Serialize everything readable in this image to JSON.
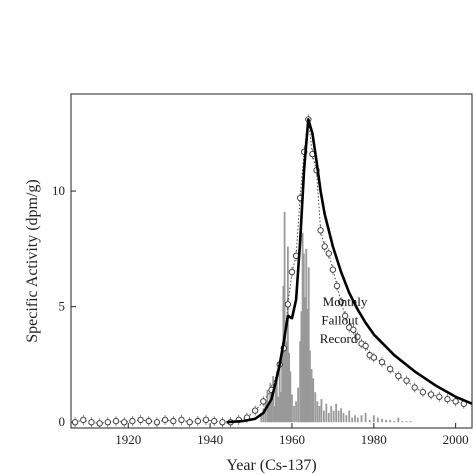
{
  "chart_data": {
    "type": "line",
    "xlabel": "Year (Cs-137)",
    "ylabel": "Specific Activity (dpm/g)",
    "xlim": [
      1906,
      2004
    ],
    "ylim": [
      -0.25,
      14.2
    ],
    "xticks": [
      1920,
      1940,
      1960,
      1980,
      2000
    ],
    "xtick_labels": [
      "1920",
      "1940",
      "1960",
      "1980",
      "2000"
    ],
    "yticks": [
      0,
      5,
      10
    ],
    "ytick_labels": [
      "0",
      "5",
      "10"
    ],
    "annotation_lines": [
      "Monthly",
      "Fallout",
      "Record"
    ],
    "series": [
      {
        "style": "solid-thick",
        "color": "#000000",
        "x": [
          1944,
          1948,
          1951,
          1953,
          1955,
          1956,
          1957,
          1958,
          1959,
          1960,
          1961,
          1962,
          1963,
          1964,
          1965,
          1966,
          1967,
          1968,
          1970,
          1972,
          1974,
          1976,
          1978,
          1980,
          1985,
          1990,
          1995,
          2000,
          2004
        ],
        "y": [
          0,
          0.05,
          0.15,
          0.4,
          1.0,
          1.7,
          2.5,
          3.5,
          4.6,
          4.5,
          5.3,
          7.8,
          11.0,
          13.1,
          12.5,
          11.3,
          10.0,
          9.0,
          7.6,
          6.5,
          5.6,
          4.9,
          4.3,
          3.8,
          2.9,
          2.2,
          1.6,
          1.1,
          0.8
        ]
      },
      {
        "style": "dotted-circles",
        "color": "#444444",
        "x": [
          1907,
          1909,
          1911,
          1913,
          1915,
          1917,
          1919,
          1921,
          1923,
          1925,
          1927,
          1929,
          1931,
          1933,
          1935,
          1937,
          1939,
          1941,
          1943,
          1945,
          1947,
          1949,
          1951,
          1953,
          1955,
          1957,
          1958,
          1959,
          1960,
          1961,
          1962,
          1963,
          1964,
          1965,
          1966,
          1967,
          1968,
          1969,
          1970,
          1971,
          1972,
          1973,
          1974,
          1975,
          1976,
          1977,
          1978,
          1979,
          1980,
          1982,
          1984,
          1986,
          1988,
          1990,
          1992,
          1994,
          1996,
          1998,
          2000,
          2002
        ],
        "y": [
          0.0,
          0.1,
          0.0,
          -0.05,
          0.0,
          0.05,
          0.0,
          0.05,
          0.1,
          0.05,
          0.0,
          0.1,
          0.05,
          0.1,
          0.0,
          0.05,
          0.1,
          0.05,
          0.0,
          0.0,
          0.1,
          0.2,
          0.5,
          0.9,
          1.4,
          2.5,
          3.2,
          5.1,
          6.5,
          7.2,
          9.7,
          11.7,
          13.1,
          11.6,
          10.9,
          8.3,
          7.6,
          7.3,
          6.6,
          5.9,
          5.2,
          4.6,
          4.1,
          4.0,
          3.7,
          3.4,
          3.3,
          2.9,
          2.8,
          2.6,
          2.3,
          2.0,
          1.8,
          1.5,
          1.3,
          1.2,
          1.1,
          1.0,
          0.9,
          0.8
        ]
      },
      {
        "style": "gray-bars",
        "color": "#999999",
        "x": [
          1952.5,
          1953.0,
          1953.5,
          1954.0,
          1954.3,
          1954.7,
          1955.0,
          1955.4,
          1955.8,
          1956.0,
          1956.3,
          1956.6,
          1957.0,
          1957.3,
          1957.6,
          1957.9,
          1958.2,
          1958.4,
          1958.7,
          1959.0,
          1959.3,
          1959.6,
          1960.0,
          1960.5,
          1961.0,
          1961.5,
          1962.0,
          1962.3,
          1962.6,
          1962.9,
          1963.2,
          1963.5,
          1963.8,
          1964.1,
          1964.4,
          1964.8,
          1965.2,
          1965.7,
          1966.2,
          1966.7,
          1967.2,
          1967.8,
          1968.4,
          1969.0,
          1969.6,
          1970.2,
          1970.8,
          1971.4,
          1972.0,
          1972.6,
          1973.3,
          1974.0,
          1974.7,
          1975.4,
          1976.1,
          1977.0,
          1978.0,
          1979.0,
          1980.0,
          1981.0,
          1982.0,
          1983.0,
          1984.0,
          1985.0,
          1986.0,
          1987.0,
          1988.0,
          1989.0
        ],
        "y": [
          0.4,
          0.6,
          0.9,
          1.4,
          0.8,
          1.7,
          1.2,
          2.0,
          0.7,
          1.6,
          2.2,
          1.1,
          2.5,
          1.3,
          3.0,
          5.9,
          9.1,
          4.2,
          3.5,
          7.6,
          3.0,
          2.2,
          1.2,
          0.7,
          0.9,
          1.5,
          3.5,
          4.8,
          8.2,
          7.3,
          5.4,
          7.5,
          4.9,
          6.7,
          3.1,
          2.3,
          1.9,
          1.3,
          0.9,
          0.7,
          1.0,
          0.5,
          0.8,
          0.4,
          0.7,
          0.5,
          0.8,
          0.5,
          0.6,
          0.4,
          0.3,
          0.5,
          0.2,
          0.3,
          0.2,
          0.3,
          0.4,
          0.1,
          0.3,
          0.2,
          0.15,
          0.1,
          0.1,
          0.05,
          0.2,
          0.05,
          0.05,
          0.05
        ]
      }
    ]
  }
}
